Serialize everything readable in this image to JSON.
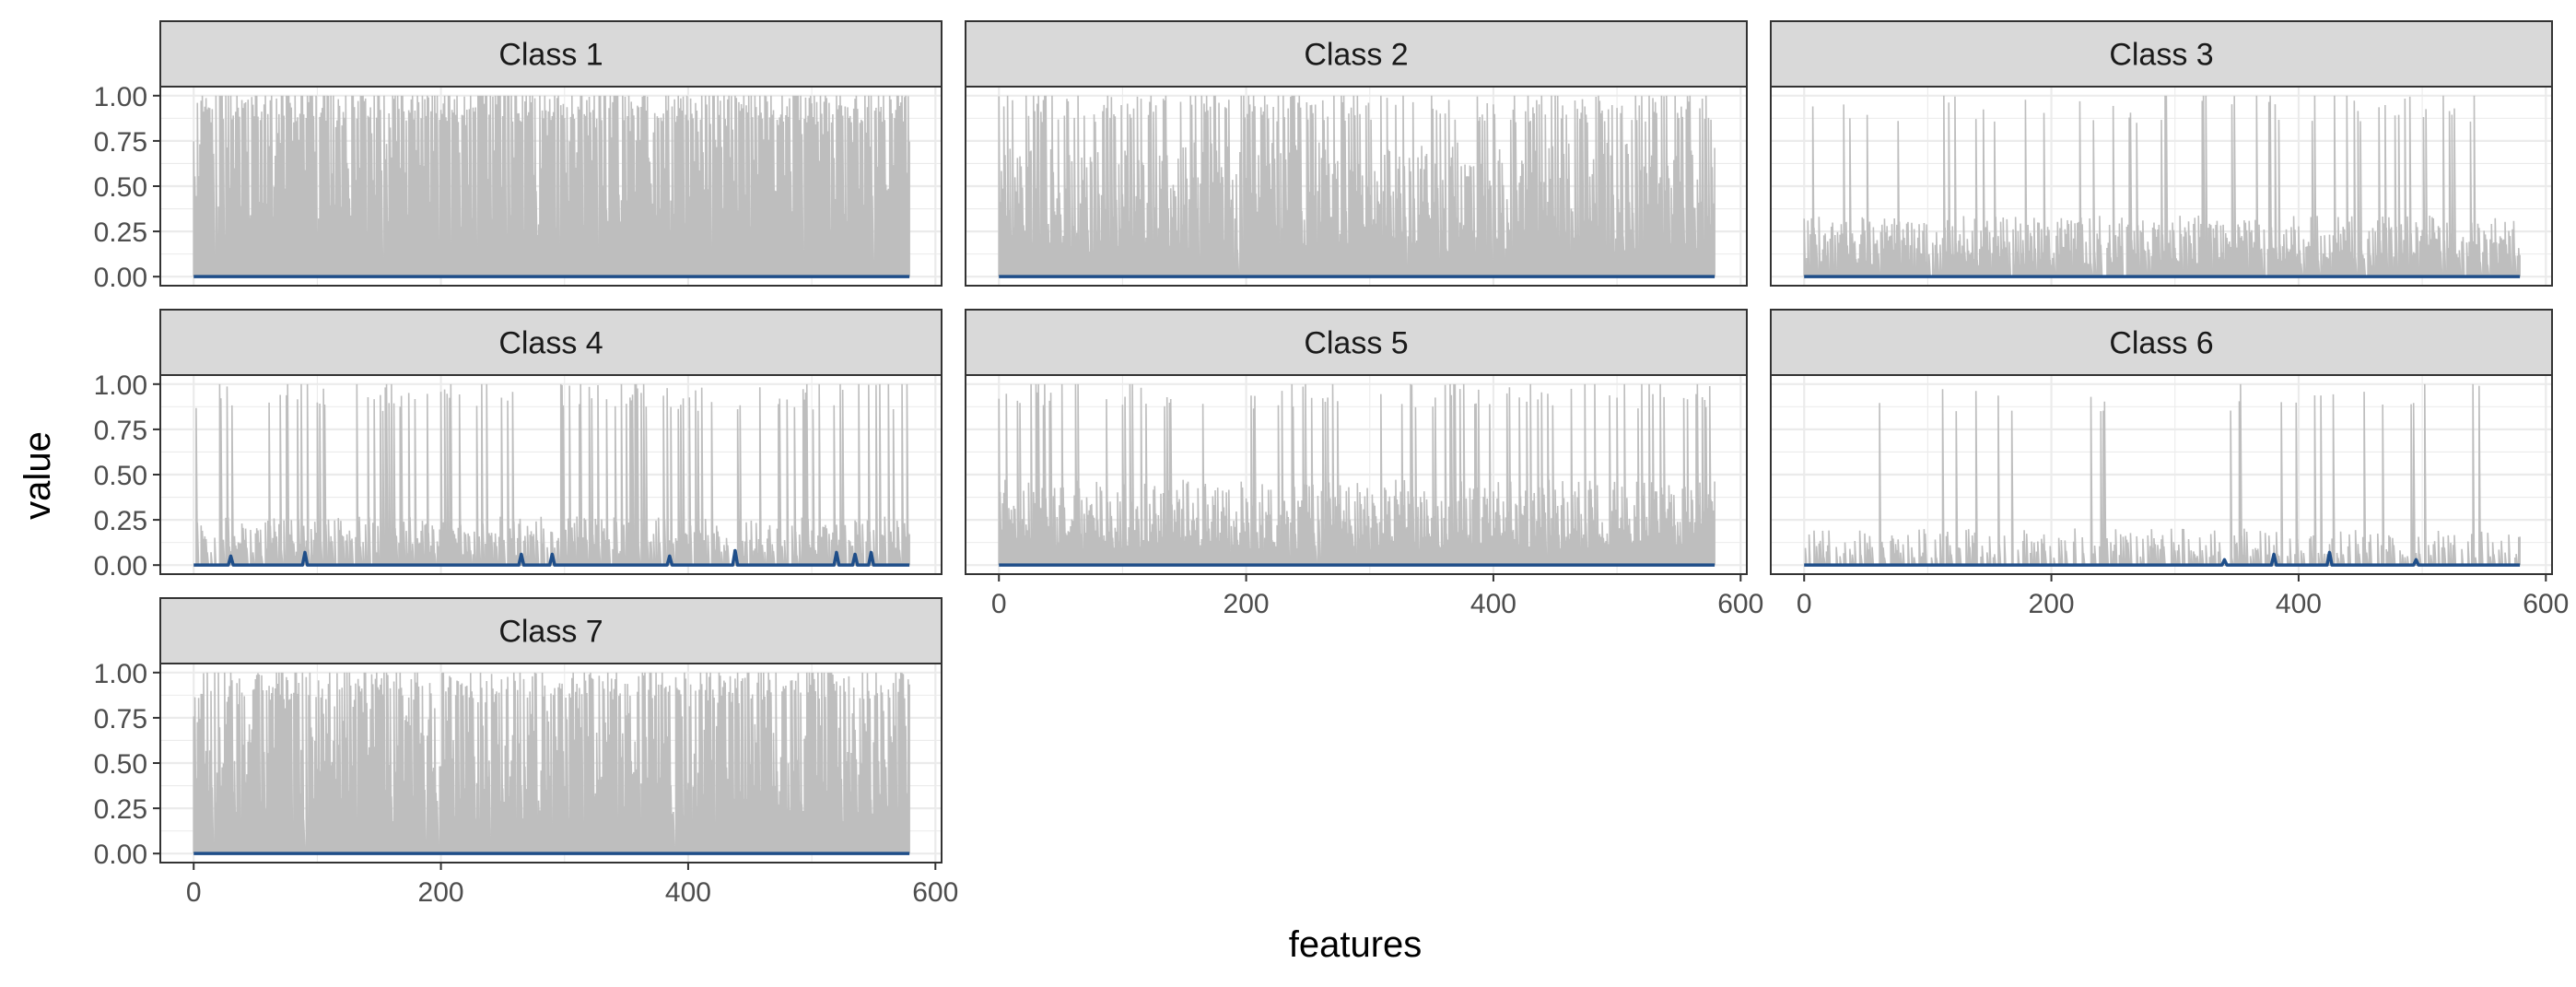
{
  "chart_data": {
    "type": "line",
    "layout": "facet-grid",
    "xlabel": "features",
    "ylabel": "value",
    "xlim": [
      -27,
      605
    ],
    "ylim": [
      -0.05,
      1.05
    ],
    "x_ticks": [
      0,
      200,
      400,
      600
    ],
    "y_ticks": [
      0,
      0.25,
      0.5,
      0.75,
      1
    ],
    "y_tick_labels": [
      "0.00",
      "0.25",
      "0.50",
      "0.75",
      "1.00"
    ],
    "x_tick_labels": [
      "0",
      "200",
      "400",
      "600"
    ],
    "n_features": 580,
    "grid": true,
    "colors": {
      "background_series": "#bebebe",
      "highlight_series": "#1f4e89",
      "strip_fill": "#d9d9d9",
      "grid": "#ebebeb",
      "panel_border": "#333333"
    },
    "panels": [
      {
        "label": "Class 1",
        "density": 0.98,
        "base": 0.9,
        "spike_rate": 0.55,
        "highlight": []
      },
      {
        "label": "Class 2",
        "density": 0.97,
        "base": 0.55,
        "spike_rate": 0.35,
        "highlight": []
      },
      {
        "label": "Class 3",
        "density": 0.9,
        "base": 0.25,
        "spike_rate": 0.12,
        "highlight": []
      },
      {
        "label": "Class 4",
        "density": 0.75,
        "base": 0.2,
        "spike_rate": 0.25,
        "highlight": [
          [
            30,
            0.05
          ],
          [
            90,
            0.07
          ],
          [
            265,
            0.06
          ],
          [
            290,
            0.06
          ],
          [
            385,
            0.05
          ],
          [
            438,
            0.08
          ],
          [
            520,
            0.07
          ],
          [
            535,
            0.06
          ],
          [
            548,
            0.07
          ]
        ]
      },
      {
        "label": "Class 5",
        "density": 0.98,
        "base": 0.35,
        "spike_rate": 0.15,
        "highlight": []
      },
      {
        "label": "Class 6",
        "density": 0.45,
        "base": 0.15,
        "spike_rate": 0.08,
        "highlight": [
          [
            340,
            0.03
          ],
          [
            380,
            0.06
          ],
          [
            425,
            0.07
          ],
          [
            495,
            0.03
          ]
        ]
      },
      {
        "label": "Class 7",
        "density": 0.98,
        "base": 0.7,
        "spike_rate": 0.45,
        "highlight": []
      }
    ]
  }
}
